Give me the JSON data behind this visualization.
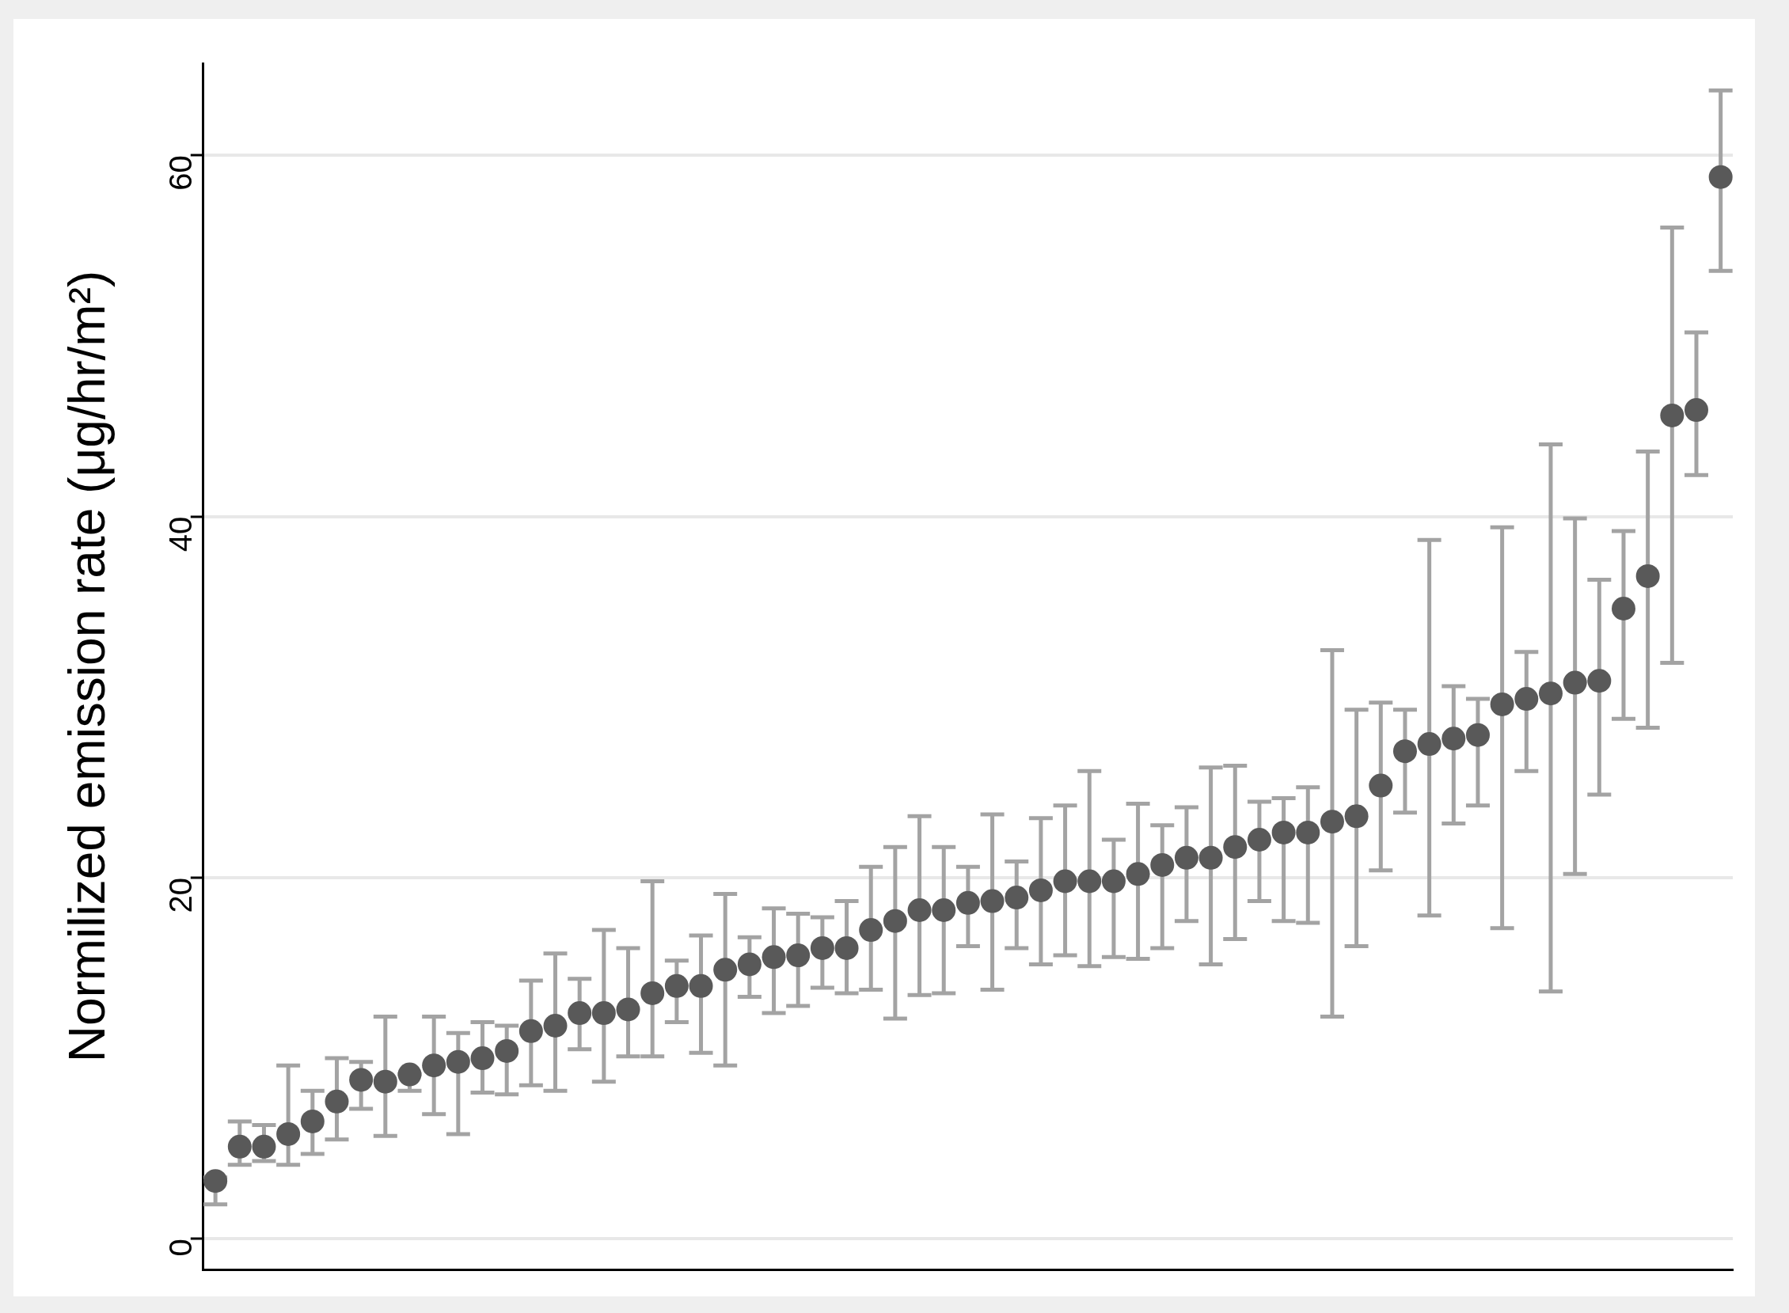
{
  "chart_data": {
    "type": "scatter",
    "ylabel": "Normilized emission rate (μg/hr/m²)",
    "categories": [
      null,
      null,
      null,
      null,
      null,
      null,
      null,
      null,
      null,
      null,
      null,
      null,
      null,
      null,
      null,
      null,
      null,
      null,
      null,
      null,
      null,
      null,
      null,
      null,
      null,
      null,
      null,
      null,
      null,
      null,
      null,
      null,
      null,
      null,
      null,
      null,
      null,
      null,
      null,
      null,
      null,
      null,
      null,
      null,
      null,
      null,
      null,
      null,
      null,
      null,
      null,
      null,
      null,
      null,
      null,
      null,
      null,
      null,
      null,
      null,
      null,
      null,
      null
    ],
    "series": [
      {
        "color": "#595959",
        "values": [
          3.2,
          5.1,
          5.1,
          5.8,
          6.5,
          7.6,
          8.8,
          8.7,
          9.1,
          9.6,
          9.8,
          10.0,
          10.4,
          11.5,
          11.8,
          12.5,
          12.5,
          12.7,
          13.6,
          14.0,
          14.0,
          14.9,
          15.2,
          15.6,
          15.7,
          16.1,
          16.1,
          17.1,
          17.6,
          18.2,
          18.2,
          18.6,
          18.7,
          18.9,
          19.3,
          19.8,
          19.8,
          19.8,
          20.2,
          20.7,
          21.1,
          21.1,
          21.7,
          22.1,
          22.5,
          22.5,
          23.1,
          23.4,
          25.1,
          27.0,
          27.4,
          27.7,
          27.9,
          29.6,
          29.9,
          30.2,
          30.8,
          30.9,
          34.9,
          36.7,
          45.6,
          45.9,
          58.8
        ],
        "errors": [
          [
            1.9,
            3.4
          ],
          [
            4.1,
            6.5
          ],
          [
            4.3,
            6.3
          ],
          [
            4.1,
            9.6
          ],
          [
            4.7,
            8.2
          ],
          [
            5.5,
            10.0
          ],
          [
            7.2,
            9.8
          ],
          [
            5.7,
            12.3
          ],
          [
            8.2,
            9.1
          ],
          [
            6.9,
            12.3
          ],
          [
            5.8,
            11.4
          ],
          [
            8.1,
            12.0
          ],
          [
            8.0,
            11.8
          ],
          [
            8.5,
            14.3
          ],
          [
            8.2,
            15.8
          ],
          [
            10.5,
            14.4
          ],
          [
            8.7,
            17.1
          ],
          [
            10.1,
            16.1
          ],
          [
            10.1,
            19.8
          ],
          [
            12.0,
            15.4
          ],
          [
            10.3,
            16.8
          ],
          [
            9.6,
            19.1
          ],
          [
            13.4,
            16.7
          ],
          [
            12.5,
            18.3
          ],
          [
            12.9,
            18.0
          ],
          [
            13.9,
            17.8
          ],
          [
            13.6,
            18.7
          ],
          [
            13.8,
            20.6
          ],
          [
            12.2,
            21.7
          ],
          [
            13.5,
            23.4
          ],
          [
            13.6,
            21.7
          ],
          [
            16.2,
            20.6
          ],
          [
            13.8,
            23.5
          ],
          [
            16.1,
            20.9
          ],
          [
            15.2,
            23.3
          ],
          [
            15.7,
            24.0
          ],
          [
            15.1,
            25.9
          ],
          [
            15.6,
            22.1
          ],
          [
            15.5,
            24.1
          ],
          [
            16.1,
            22.9
          ],
          [
            17.6,
            23.9
          ],
          [
            15.2,
            26.1
          ],
          [
            16.6,
            26.2
          ],
          [
            18.7,
            24.2
          ],
          [
            17.6,
            24.4
          ],
          [
            17.5,
            25.0
          ],
          [
            12.3,
            32.6
          ],
          [
            16.2,
            29.3
          ],
          [
            20.4,
            29.7
          ],
          [
            23.6,
            29.3
          ],
          [
            17.9,
            38.7
          ],
          [
            23.0,
            30.6
          ],
          [
            24.0,
            29.9
          ],
          [
            17.2,
            39.4
          ],
          [
            25.9,
            32.5
          ],
          [
            13.7,
            44.0
          ],
          [
            20.2,
            39.9
          ],
          [
            24.6,
            36.5
          ],
          [
            28.8,
            39.2
          ],
          [
            28.3,
            43.6
          ],
          [
            31.9,
            56.0
          ],
          [
            42.3,
            50.2
          ],
          [
            53.6,
            63.6
          ]
        ]
      }
    ],
    "ylim": [
      -1.7,
      65.1
    ],
    "yticks": [
      0,
      20,
      40,
      60
    ],
    "grid": "y",
    "marker": "circle",
    "tick_labels": "y"
  }
}
